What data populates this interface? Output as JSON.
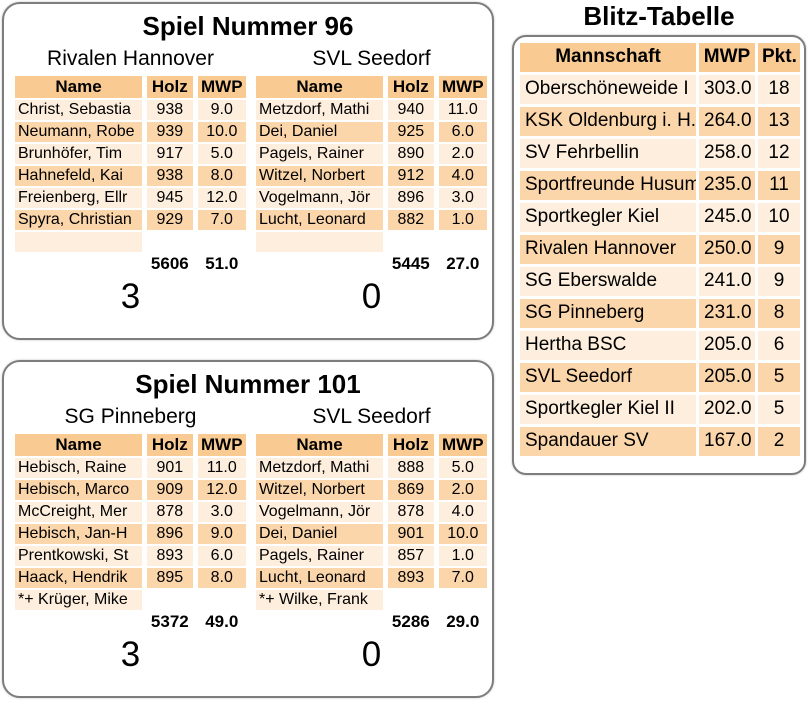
{
  "colors": {
    "header_bg": "#f9cb93",
    "row_light": "#fdeedd",
    "row_dark": "#fbd6ab",
    "panel_border": "#7d7d7d",
    "text": "#000000"
  },
  "games": [
    {
      "title": "Spiel Nummer 96",
      "columns": {
        "name": "Name",
        "holz": "Holz",
        "mwp": "MWP"
      },
      "teams": [
        {
          "name": "Rivalen Hannover",
          "players": [
            {
              "name": "Christ, Sebastia",
              "holz": "938",
              "mwp": "9.0"
            },
            {
              "name": "Neumann, Robe",
              "holz": "939",
              "mwp": "10.0"
            },
            {
              "name": "Brunhöfer, Tim",
              "holz": "917",
              "mwp": "5.0"
            },
            {
              "name": "Hahnefeld, Kai",
              "holz": "938",
              "mwp": "8.0"
            },
            {
              "name": "Freienberg, Ellr",
              "holz": "945",
              "mwp": "12.0"
            },
            {
              "name": "Spyra, Christian",
              "holz": "929",
              "mwp": "7.0"
            }
          ],
          "extra": "",
          "total_holz": "5606",
          "total_mwp": "51.0",
          "score": "3"
        },
        {
          "name": "SVL Seedorf",
          "players": [
            {
              "name": "Metzdorf, Mathi",
              "holz": "940",
              "mwp": "11.0"
            },
            {
              "name": "Dei, Daniel",
              "holz": "925",
              "mwp": "6.0"
            },
            {
              "name": "Pagels, Rainer",
              "holz": "890",
              "mwp": "2.0"
            },
            {
              "name": "Witzel, Norbert",
              "holz": "912",
              "mwp": "4.0"
            },
            {
              "name": "Vogelmann, Jör",
              "holz": "896",
              "mwp": "3.0"
            },
            {
              "name": "Lucht, Leonard",
              "holz": "882",
              "mwp": "1.0"
            }
          ],
          "extra": "",
          "total_holz": "5445",
          "total_mwp": "27.0",
          "score": "0"
        }
      ]
    },
    {
      "title": "Spiel Nummer 101",
      "columns": {
        "name": "Name",
        "holz": "Holz",
        "mwp": "MWP"
      },
      "teams": [
        {
          "name": "SG Pinneberg",
          "players": [
            {
              "name": "Hebisch, Raine",
              "holz": "901",
              "mwp": "11.0"
            },
            {
              "name": "Hebisch, Marco",
              "holz": "909",
              "mwp": "12.0"
            },
            {
              "name": "McCreight, Mer",
              "holz": "878",
              "mwp": "3.0"
            },
            {
              "name": "Hebisch, Jan-H",
              "holz": "896",
              "mwp": "9.0"
            },
            {
              "name": "Prentkowski, St",
              "holz": "893",
              "mwp": "6.0"
            },
            {
              "name": "Haack, Hendrik",
              "holz": "895",
              "mwp": "8.0"
            }
          ],
          "extra": "*+ Krüger, Mike",
          "total_holz": "5372",
          "total_mwp": "49.0",
          "score": "3"
        },
        {
          "name": "SVL Seedorf",
          "players": [
            {
              "name": "Metzdorf, Mathi",
              "holz": "888",
              "mwp": "5.0"
            },
            {
              "name": "Witzel, Norbert",
              "holz": "869",
              "mwp": "2.0"
            },
            {
              "name": "Vogelmann, Jör",
              "holz": "878",
              "mwp": "4.0"
            },
            {
              "name": "Dei, Daniel",
              "holz": "901",
              "mwp": "10.0"
            },
            {
              "name": "Pagels, Rainer",
              "holz": "857",
              "mwp": "1.0"
            },
            {
              "name": "Lucht, Leonard",
              "holz": "893",
              "mwp": "7.0"
            }
          ],
          "extra": "*+ Wilke, Frank",
          "total_holz": "5286",
          "total_mwp": "29.0",
          "score": "0"
        }
      ]
    }
  ],
  "blitz": {
    "title": "Blitz-Tabelle",
    "columns": {
      "team": "Mannschaft",
      "mwp": "MWP",
      "pkt": "Pkt."
    },
    "rows": [
      {
        "team": "Oberschöneweide I",
        "mwp": "303.0",
        "pkt": "18"
      },
      {
        "team": "KSK Oldenburg i. H.",
        "mwp": "264.0",
        "pkt": "13"
      },
      {
        "team": "SV Fehrbellin",
        "mwp": "258.0",
        "pkt": "12"
      },
      {
        "team": "Sportfreunde Husum",
        "mwp": "235.0",
        "pkt": "11"
      },
      {
        "team": "Sportkegler Kiel",
        "mwp": "245.0",
        "pkt": "10"
      },
      {
        "team": "Rivalen Hannover",
        "mwp": "250.0",
        "pkt": "9"
      },
      {
        "team": "SG Eberswalde",
        "mwp": "241.0",
        "pkt": "9"
      },
      {
        "team": "SG Pinneberg",
        "mwp": "231.0",
        "pkt": "8"
      },
      {
        "team": "Hertha BSC",
        "mwp": "205.0",
        "pkt": "6"
      },
      {
        "team": "SVL Seedorf",
        "mwp": "205.0",
        "pkt": "5"
      },
      {
        "team": "Sportkegler Kiel II",
        "mwp": "202.0",
        "pkt": "5"
      },
      {
        "team": "Spandauer SV",
        "mwp": "167.0",
        "pkt": "2"
      }
    ]
  }
}
